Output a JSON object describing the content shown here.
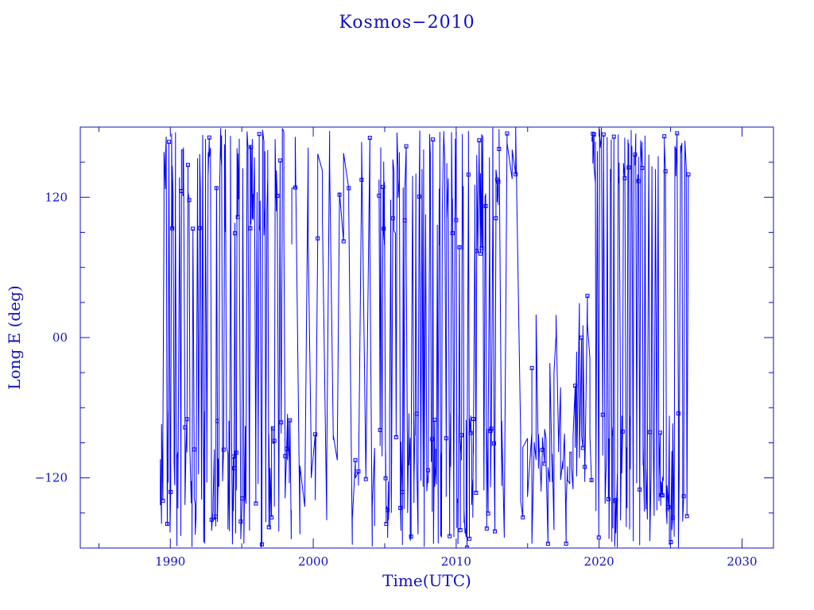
{
  "chart_data": {
    "type": "line",
    "title": "Kosmos−2010",
    "xlabel": "Time(UTC)",
    "ylabel": "Long E (deg)",
    "xlim": [
      1983.7,
      2032.2
    ],
    "ylim": [
      -180,
      180
    ],
    "xticks": [
      1990,
      2000,
      2010,
      2020,
      2030
    ],
    "xtick_labels": [
      "1990",
      "2000",
      "2010",
      "2020",
      "2030"
    ],
    "yticks": [
      120,
      0,
      -120
    ],
    "ytick_labels": [
      "120",
      "00",
      "−120"
    ],
    "grid": false,
    "color": "#0000ff",
    "markers": "square",
    "segments": [
      {
        "x": [
          1989.3,
          1998.5
        ],
        "upper_band": [
          80,
          180
        ],
        "lower_band": [
          -180,
          -60
        ],
        "density": "dense"
      },
      {
        "x": [
          1998.5,
          2004.5
        ],
        "upper_band": [
          70,
          180
        ],
        "lower_band": [
          -180,
          -70
        ],
        "density": "sparse"
      },
      {
        "x": [
          2004.6,
          2013.0
        ],
        "upper_band": [
          70,
          180
        ],
        "lower_band": [
          -180,
          -60
        ],
        "density": "dense"
      },
      {
        "x": [
          2013.0,
          2015.3
        ],
        "upper_band": [
          130,
          180
        ],
        "lower_band": [
          -180,
          -70
        ],
        "density": "sparse"
      },
      {
        "x": [
          2015.3,
          2019.5
        ],
        "upper_band": [
          -180,
          40
        ],
        "lower_band": [
          -130,
          -70
        ],
        "density": "medium"
      },
      {
        "x": [
          2019.5,
          2026.3
        ],
        "upper_band": [
          130,
          180
        ],
        "lower_band": [
          -180,
          -60
        ],
        "density": "dense"
      }
    ]
  }
}
